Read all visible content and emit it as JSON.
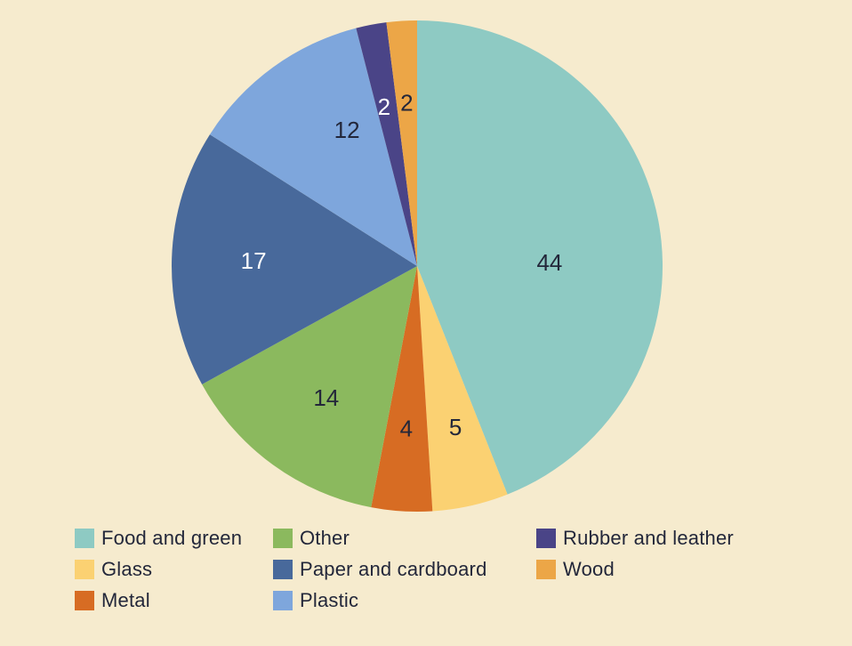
{
  "background_color": "#f6ebce",
  "text_color": "#23273a",
  "chart_data": {
    "type": "pie",
    "title": "",
    "unit": "percent",
    "center": [
      469,
      299
    ],
    "radius": 276,
    "start_angle_deg": 0,
    "direction": "clockwise",
    "legend_position": "bottom",
    "series": [
      {
        "name": "Food and green",
        "value": 44,
        "color": "#8ecac3",
        "label_color": "#23273a",
        "label_angle": 88.5,
        "label_r": 149
      },
      {
        "name": "Glass",
        "value": 5,
        "color": "#fbd172",
        "label_color": "#23273a",
        "label_angle": 166.6,
        "label_r": 186
      },
      {
        "name": "Metal",
        "value": 4,
        "color": "#d76c23",
        "label_color": "#23273a",
        "label_angle": 183.8,
        "label_r": 183
      },
      {
        "name": "Other",
        "value": 14,
        "color": "#8bb95e",
        "label_color": "#23273a",
        "label_angle": 214.6,
        "label_r": 180
      },
      {
        "name": "Paper and cardboard",
        "value": 17,
        "color": "#48699b",
        "label_color": "#ffffff",
        "label_angle": 271.9,
        "label_r": 184
      },
      {
        "name": "Plastic",
        "value": 12,
        "color": "#7ea6dc",
        "label_color": "#23273a",
        "label_angle": 332.7,
        "label_r": 172
      },
      {
        "name": "Rubber and leather",
        "value": 2,
        "color": "#4a4487",
        "label_color": "#ffffff",
        "label_angle": 348.3,
        "label_r": 183
      },
      {
        "name": "Wood",
        "value": 2,
        "color": "#eca647",
        "label_color": "#23273a",
        "label_angle": 356.4,
        "label_r": 184
      }
    ],
    "legend_columns": [
      [
        0,
        1,
        2
      ],
      [
        3,
        4,
        5
      ],
      [
        6,
        7
      ]
    ]
  }
}
